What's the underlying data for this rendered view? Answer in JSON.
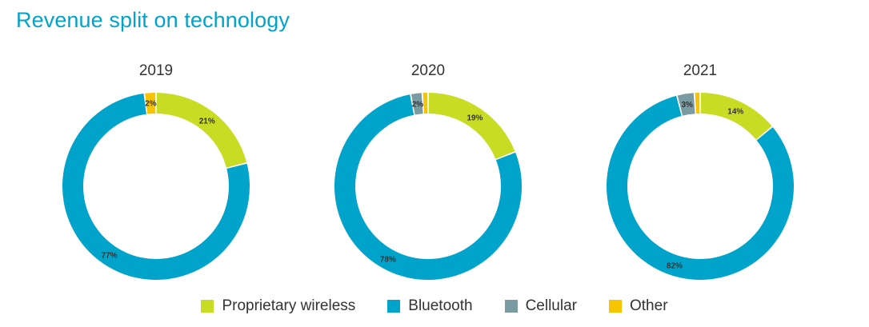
{
  "title": "Revenue split on technology",
  "legend": [
    {
      "label": "Proprietary wireless",
      "color": "#c8dc23"
    },
    {
      "label": "Bluetooth",
      "color": "#00a3c9"
    },
    {
      "label": "Cellular",
      "color": "#7b9ba3"
    },
    {
      "label": "Other",
      "color": "#f7c400"
    }
  ],
  "chart_data": [
    {
      "type": "pie",
      "subtype": "donut",
      "title": "2019",
      "categories": [
        "Proprietary wireless",
        "Bluetooth",
        "Cellular",
        "Other"
      ],
      "values": [
        21,
        77,
        0,
        2
      ],
      "labels": [
        "21%",
        "77%",
        "",
        "2%"
      ]
    },
    {
      "type": "pie",
      "subtype": "donut",
      "title": "2020",
      "categories": [
        "Proprietary wireless",
        "Bluetooth",
        "Cellular",
        "Other"
      ],
      "values": [
        19,
        78,
        2,
        1
      ],
      "labels": [
        "19%",
        "78%",
        "2%",
        ""
      ]
    },
    {
      "type": "pie",
      "subtype": "donut",
      "title": "2021",
      "categories": [
        "Proprietary wireless",
        "Bluetooth",
        "Cellular",
        "Other"
      ],
      "values": [
        14,
        82,
        3,
        1
      ],
      "labels": [
        "14%",
        "82%",
        "3%",
        ""
      ]
    }
  ]
}
